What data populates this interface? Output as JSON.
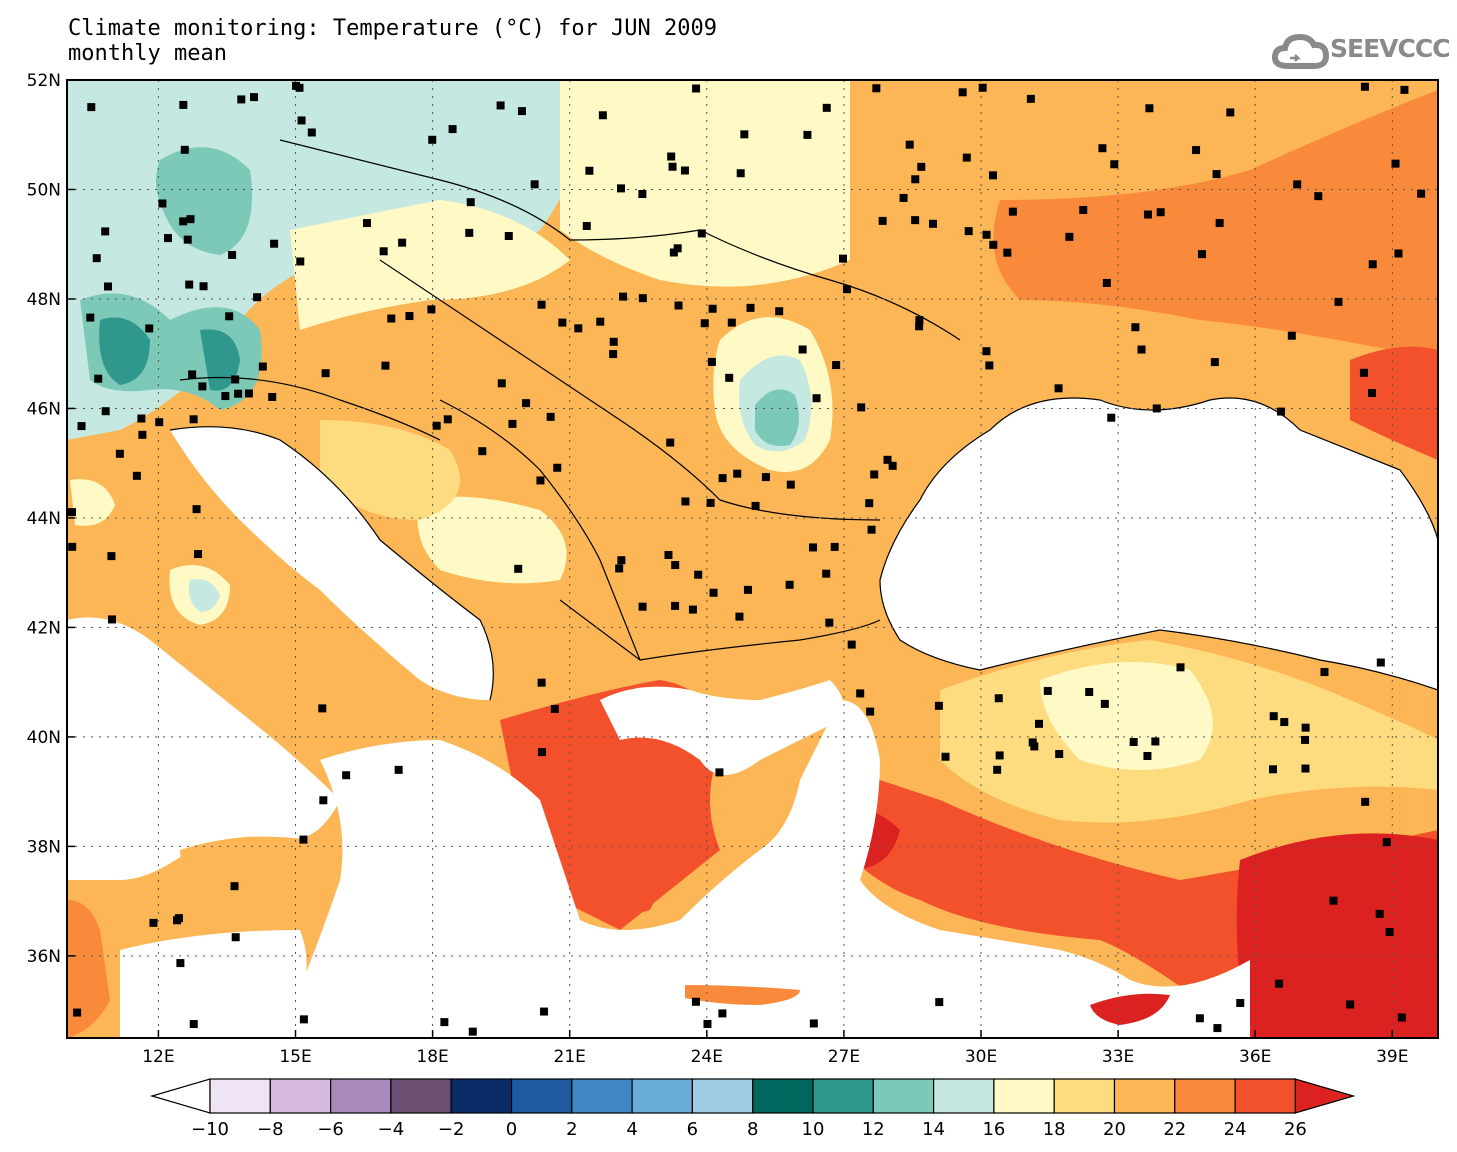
{
  "title": {
    "line1": "Climate monitoring: Temperature (°C) for JUN 2009",
    "line2": "monthly mean"
  },
  "logo": {
    "text": "SEEVCCC",
    "icon": "cloud-icon",
    "color": "#8a8a8a"
  },
  "map": {
    "lon_range": [
      10,
      40
    ],
    "lat_range": [
      34.5,
      52
    ],
    "lat_ticks": [
      "52N",
      "50N",
      "48N",
      "46N",
      "44N",
      "42N",
      "40N",
      "38N",
      "36N"
    ],
    "lon_ticks": [
      "12E",
      "15E",
      "18E",
      "21E",
      "24E",
      "27E",
      "30E",
      "33E",
      "36E",
      "39E"
    ],
    "grid": true
  },
  "legend": {
    "tick_labels": [
      "−10",
      "−8",
      "−6",
      "−4",
      "−2",
      "0",
      "2",
      "4",
      "6",
      "8",
      "10",
      "12",
      "14",
      "16",
      "18",
      "20",
      "22",
      "24",
      "26"
    ],
    "colors": [
      "#ffffff",
      "#efe4f3",
      "#d7b8e1",
      "#a98abd",
      "#6a4f73",
      "#0c2c68",
      "#1d5aa0",
      "#3f88c5",
      "#6aadd8",
      "#9fcbe4",
      "#00675e",
      "#2f978c",
      "#7cc9b8",
      "#c5e8e1",
      "#fffac5",
      "#fddc80",
      "#fcb656",
      "#fa8a3b",
      "#f3512b",
      "#dc2121"
    ]
  }
}
